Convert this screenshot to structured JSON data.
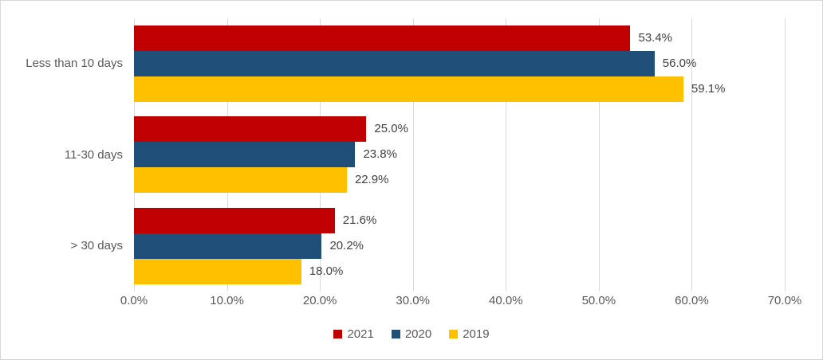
{
  "chart_data": {
    "type": "bar",
    "orientation": "horizontal",
    "title": "",
    "xlabel": "",
    "ylabel": "",
    "categories": [
      "Less than 10 days",
      "11-30 days",
      "> 30 days"
    ],
    "series": [
      {
        "name": "2021",
        "color": "#C00000",
        "values": [
          53.4,
          25.0,
          21.6
        ],
        "labels": [
          "53.4%",
          "25.0%",
          "21.6%"
        ]
      },
      {
        "name": "2020",
        "color": "#1F4E79",
        "values": [
          56.0,
          23.8,
          20.2
        ],
        "labels": [
          "56.0%",
          "23.8%",
          "20.2%"
        ]
      },
      {
        "name": "2019",
        "color": "#FFC000",
        "values": [
          59.1,
          22.9,
          18.0
        ],
        "labels": [
          "59.1%",
          "22.9%",
          "18.0%"
        ]
      }
    ],
    "xlim": [
      0,
      70
    ],
    "x_ticks": [
      {
        "value": 0,
        "label": "0.0%"
      },
      {
        "value": 10,
        "label": "10.0%"
      },
      {
        "value": 20,
        "label": "20.0%"
      },
      {
        "value": 30,
        "label": "30.0%"
      },
      {
        "value": 40,
        "label": "40.0%"
      },
      {
        "value": 50,
        "label": "50.0%"
      },
      {
        "value": 60,
        "label": "60.0%"
      },
      {
        "value": 70,
        "label": "70.0%"
      }
    ],
    "grid": true,
    "legend_position": "bottom",
    "colors": {
      "gridline": "#d9d9d9",
      "frame_border": "#d6d6d6",
      "axis_text": "#595959",
      "data_label_text": "#404040",
      "background": "#ffffff"
    }
  }
}
